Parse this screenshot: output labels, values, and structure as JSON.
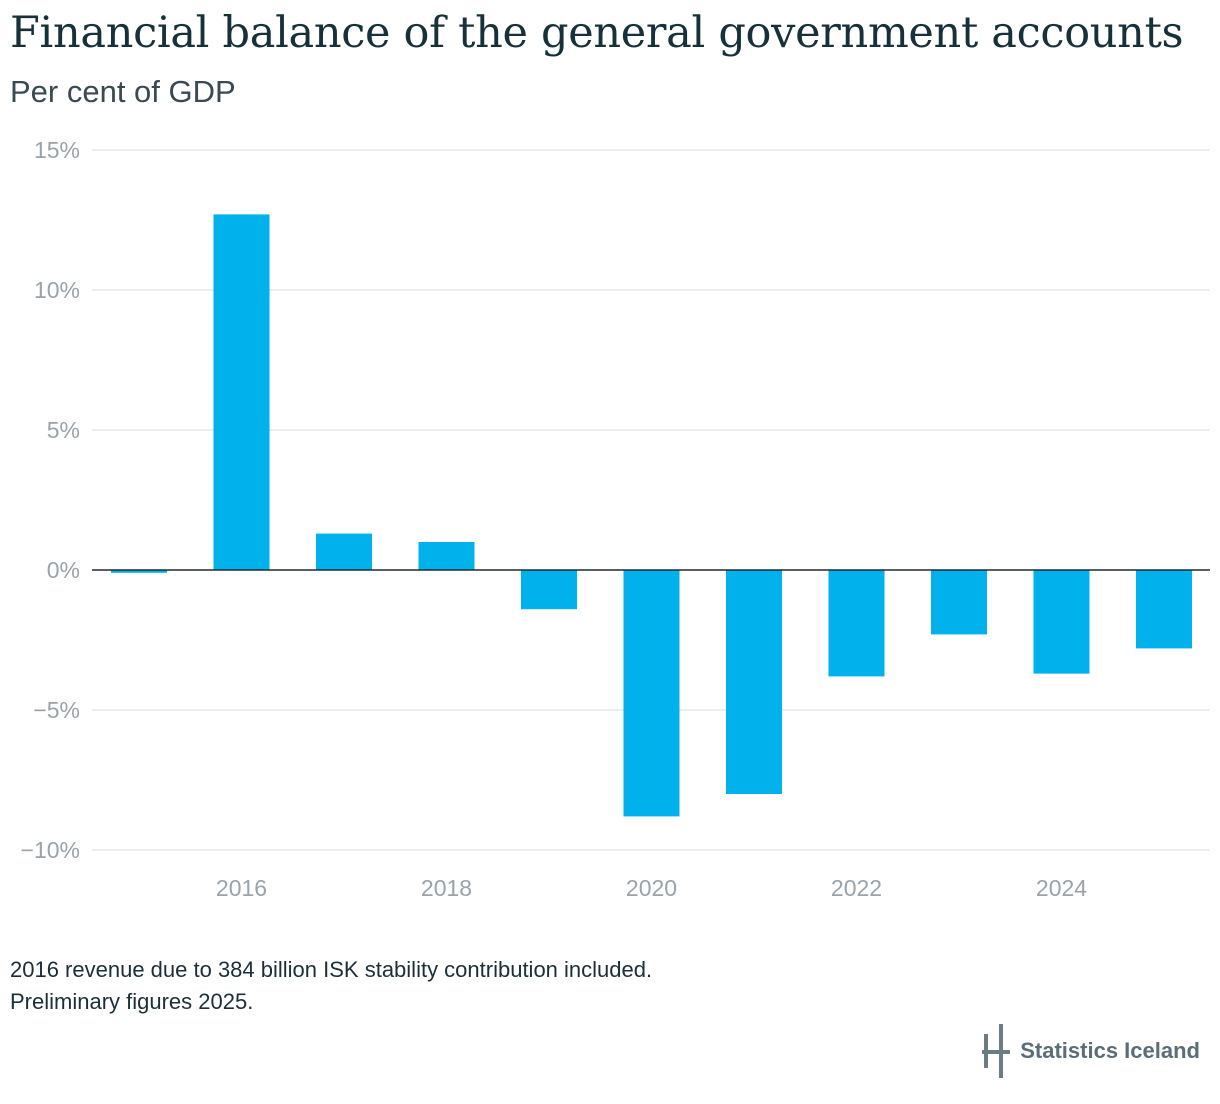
{
  "chart_data": {
    "type": "bar",
    "title": "Financial balance of the general government accounts",
    "subtitle": "Per cent of GDP",
    "x": [
      2015,
      2016,
      2017,
      2018,
      2019,
      2020,
      2021,
      2022,
      2023,
      2024,
      2025
    ],
    "values": [
      -0.1,
      12.7,
      1.3,
      1.0,
      -1.4,
      -8.8,
      -8.0,
      -3.8,
      -2.3,
      -3.7,
      -2.8
    ],
    "x_tick_labels": [
      "2016",
      "2018",
      "2020",
      "2022",
      "2024"
    ],
    "y_ticks": [
      15,
      10,
      5,
      0,
      -5,
      -10
    ],
    "y_tick_labels": [
      "15%",
      "10%",
      "5%",
      "0%",
      "−5%",
      "−10%"
    ],
    "ylim": [
      -10,
      15
    ],
    "xlabel": "",
    "ylabel": "",
    "grid": true,
    "bar_color": "#00b1eb"
  },
  "notes": [
    "2016 revenue due to 384 billion ISK stability contribution included.",
    "Preliminary figures 2025."
  ],
  "brand": {
    "name": "Statistics Iceland",
    "logo_icon": "statistics-iceland-logo-icon",
    "color": "#5b6d77"
  }
}
